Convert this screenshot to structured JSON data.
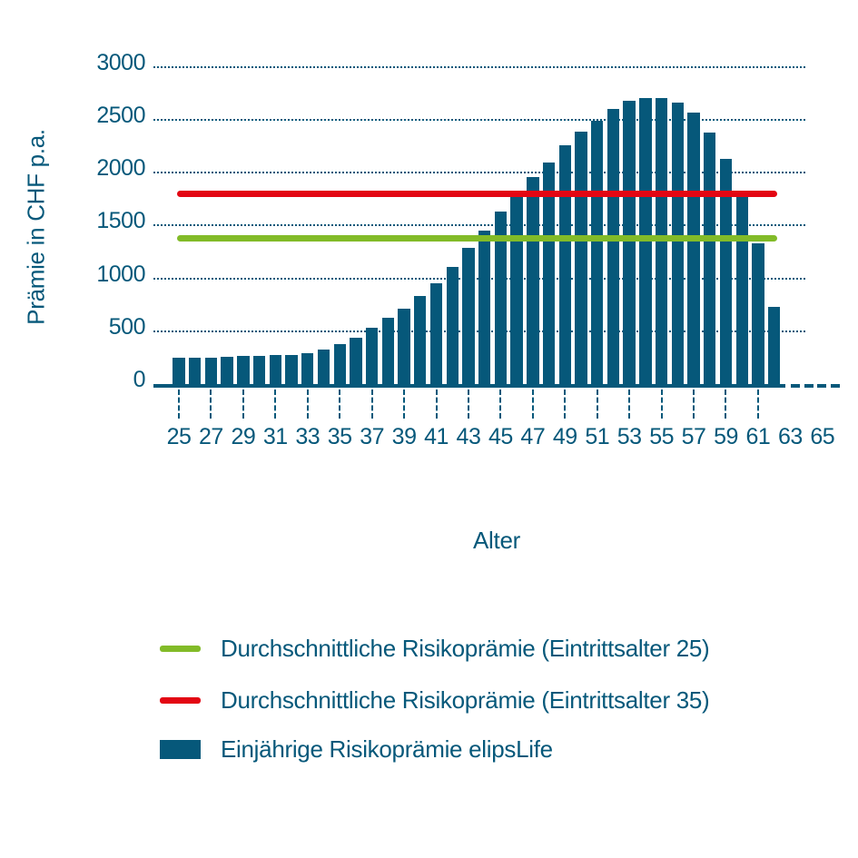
{
  "chart_data": {
    "type": "bar",
    "title": "",
    "xlabel": "Alter",
    "ylabel": "Prämie in CHF p.a.",
    "ylim": [
      0,
      3000
    ],
    "yticks": [
      0,
      500,
      1000,
      1500,
      2000,
      2500,
      3000
    ],
    "xtick_labels": [
      "25",
      "27",
      "29",
      "31",
      "33",
      "35",
      "37",
      "39",
      "41",
      "43",
      "45",
      "47",
      "49",
      "51",
      "53",
      "55",
      "57",
      "59",
      "61",
      "63",
      "65"
    ],
    "xticks_with_marks": [
      25,
      27,
      29,
      31,
      33,
      35,
      37,
      39,
      41,
      43,
      45,
      47,
      49,
      51,
      53,
      55,
      57,
      59,
      61
    ],
    "grid": "horizontal-dotted",
    "legend_position": "bottom-left",
    "series": [
      {
        "name": "Einjährige Risikoprämie elipsLife",
        "type": "bar",
        "color": "#06587A",
        "ages": [
          25,
          26,
          27,
          28,
          29,
          30,
          31,
          32,
          33,
          34,
          35,
          36,
          37,
          38,
          39,
          40,
          41,
          42,
          43,
          44,
          45,
          46,
          47,
          48,
          49,
          50,
          51,
          52,
          53,
          54,
          55,
          56,
          57,
          58,
          59,
          60,
          61,
          62
        ],
        "values": [
          245,
          245,
          245,
          255,
          263,
          268,
          275,
          278,
          290,
          330,
          380,
          435,
          530,
          625,
          715,
          830,
          955,
          1105,
          1285,
          1450,
          1635,
          1770,
          1955,
          2100,
          2260,
          2390,
          2490,
          2600,
          2680,
          2710,
          2710,
          2660,
          2565,
          2380,
          2130,
          1810,
          1330,
          730
        ]
      },
      {
        "name": "Durchschnittliche Risikoprämie (Eintrittsalter 25)",
        "type": "hline",
        "color": "#82BB28",
        "value": 1380,
        "age_span": [
          25,
          62
        ]
      },
      {
        "name": "Durchschnittliche Risikoprämie (Eintrittsalter 35)",
        "type": "hline",
        "color": "#E30613",
        "value": 1800,
        "age_span": [
          25,
          62
        ]
      }
    ],
    "x_axis_dashed_extension": "after age 62 up to 65"
  },
  "axes": {
    "y_title": "Prämie in CHF p.a.",
    "x_title": "Alter"
  },
  "legend": {
    "items": [
      {
        "label": "Durchschnittliche Risikoprämie (Eintrittsalter 25)",
        "swatch": "line",
        "color": "#82BB28"
      },
      {
        "label": "Durchschnittliche Risikoprämie (Eintrittsalter 35)",
        "swatch": "line",
        "color": "#E30613"
      },
      {
        "label": "Einjährige Risikoprämie elipsLife",
        "swatch": "rect",
        "color": "#06587A"
      }
    ]
  },
  "colors": {
    "petrol": "#06587A",
    "green": "#82BB28",
    "red": "#E30613",
    "background": "#FFFFFF"
  }
}
